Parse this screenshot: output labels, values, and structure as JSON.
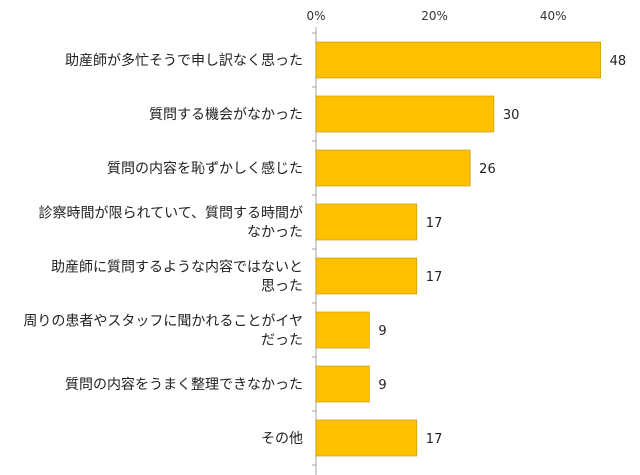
{
  "chart_data": {
    "type": "bar",
    "orientation": "horizontal",
    "categories": [
      [
        "助産師が多忙そうで申し訳なく思った"
      ],
      [
        "質問する機会がなかった"
      ],
      [
        "質問の内容を恥ずかしく感じた"
      ],
      [
        "診察時間が限られていて、質問する時間が",
        "なかった"
      ],
      [
        "助産師に質問するような内容ではないと",
        "思った"
      ],
      [
        "周りの患者やスタッフに聞かれることがイヤ",
        "だった"
      ],
      [
        "質問の内容をうまく整理できなかった"
      ],
      [
        "その他"
      ]
    ],
    "values": [
      48,
      30,
      26,
      17,
      17,
      9,
      9,
      17
    ],
    "value_labels": [
      "48",
      "30",
      "26",
      "17",
      "17",
      "9",
      "9",
      "17"
    ],
    "xlim": [
      0,
      50
    ],
    "ticks": [
      {
        "value": 0,
        "label": "0%"
      },
      {
        "value": 20,
        "label": "20%"
      },
      {
        "value": 40,
        "label": "40%"
      }
    ],
    "grid": false,
    "colors": {
      "bar_fill": "#FFC000",
      "bar_stroke": "#C09000",
      "axis": "#A6A6A6"
    }
  }
}
